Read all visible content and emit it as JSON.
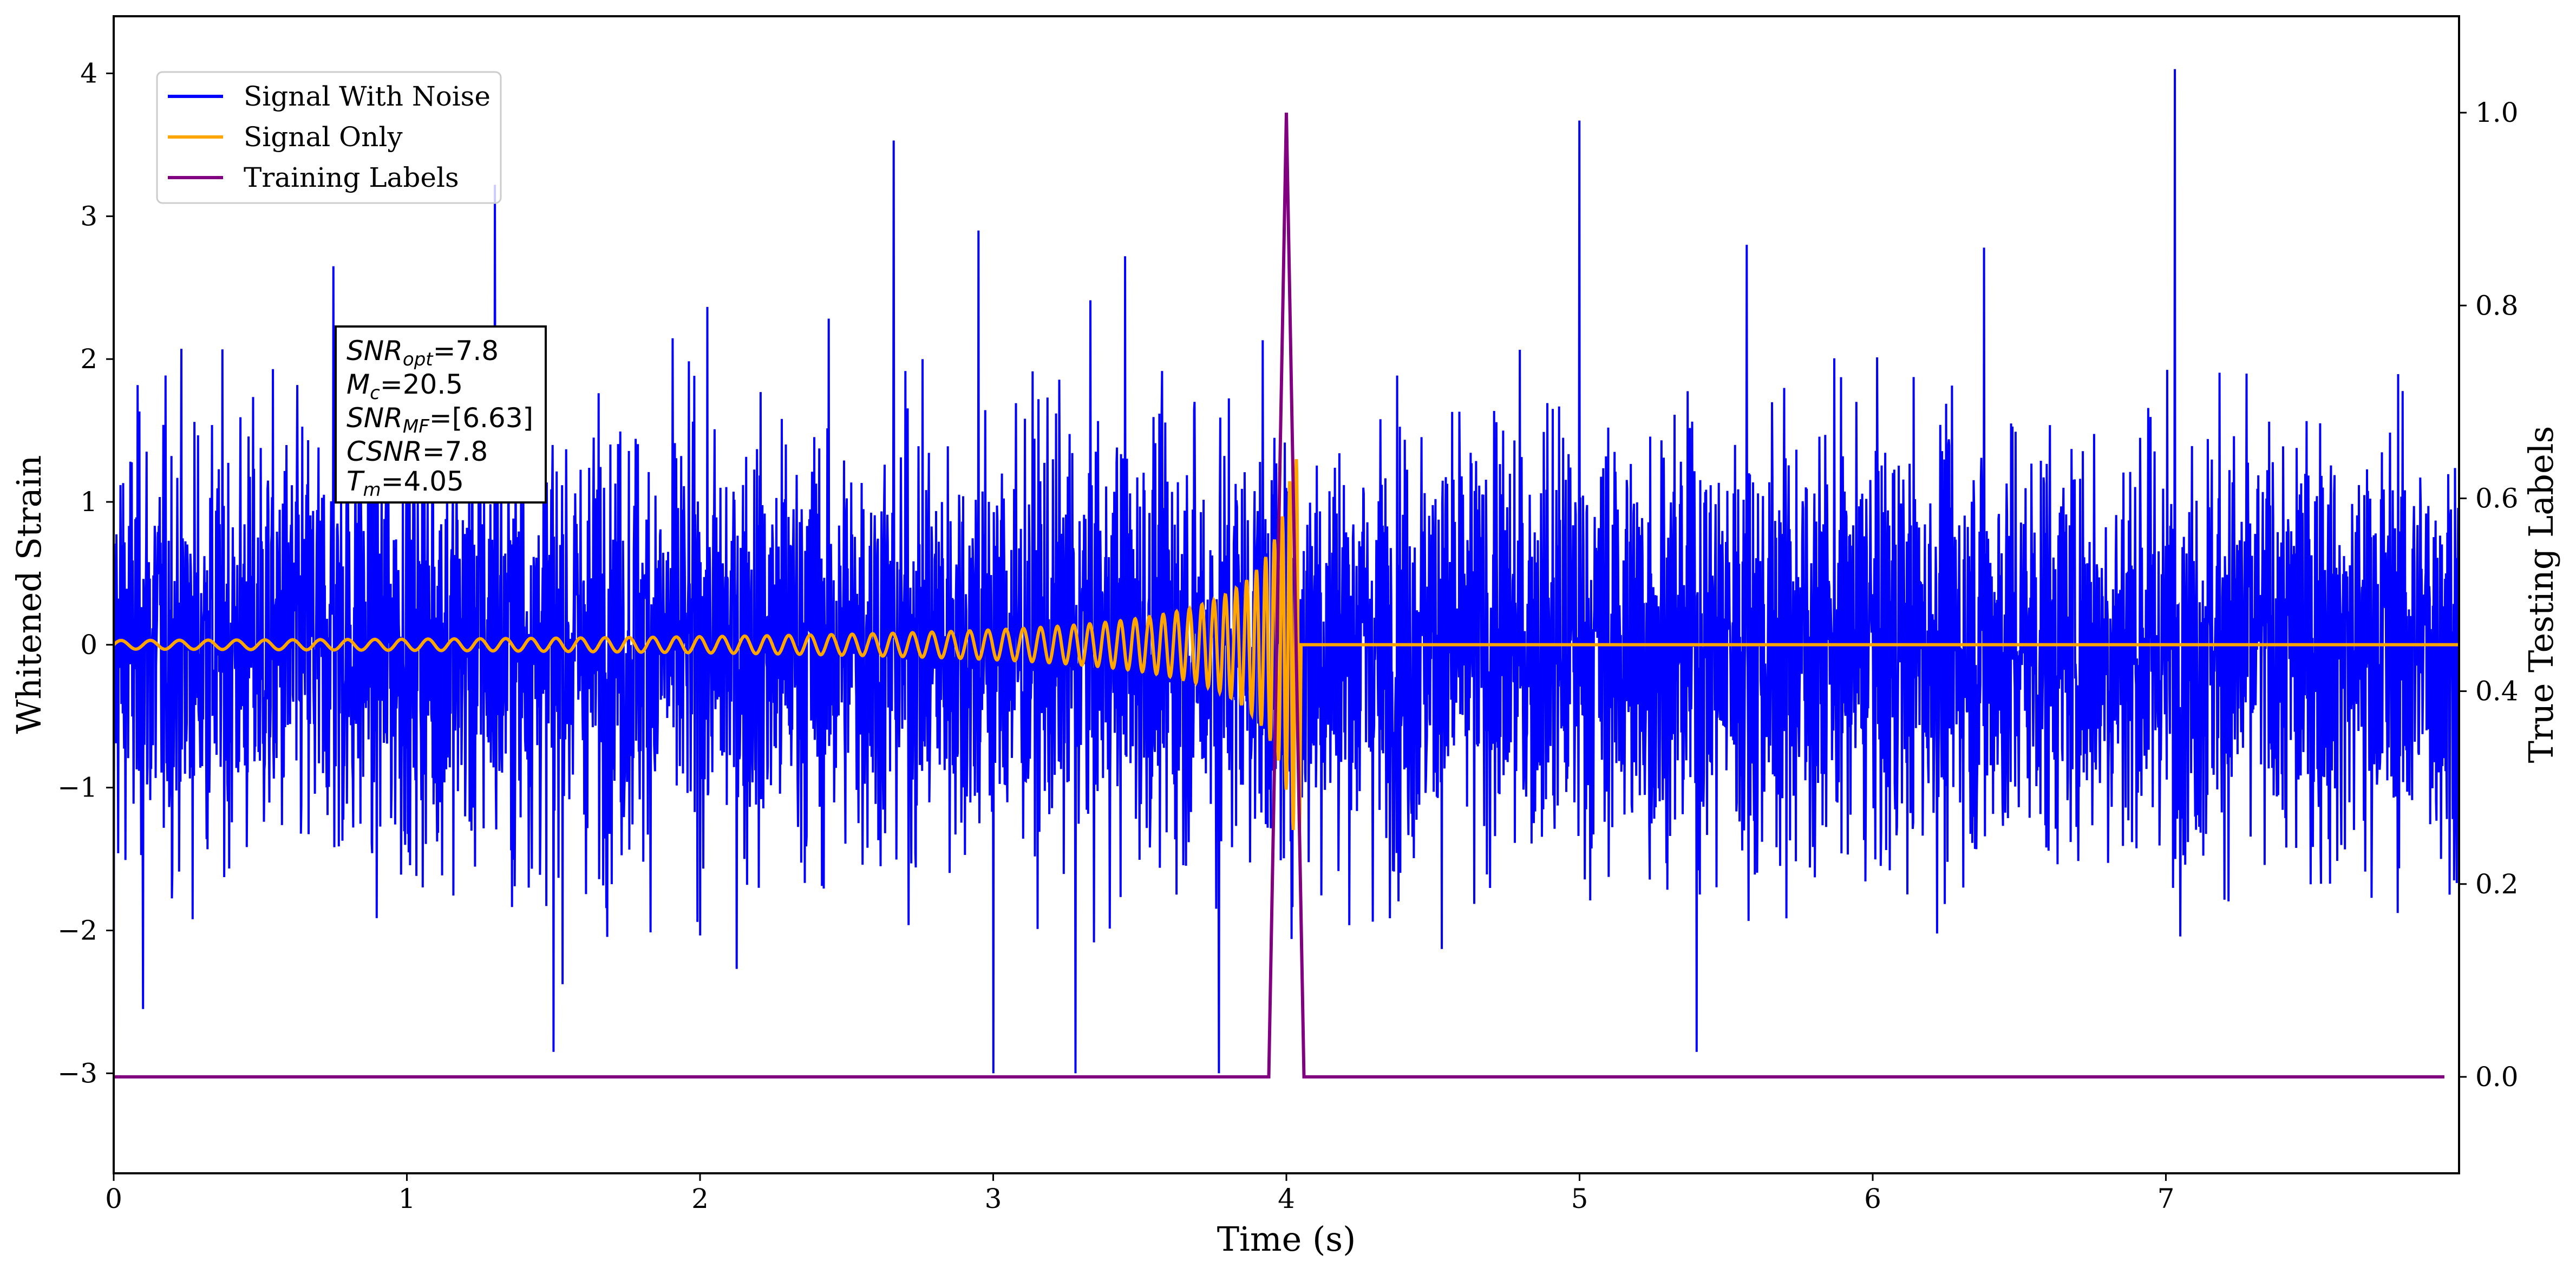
{
  "chart_data": {
    "type": "line",
    "xlabel": "Time (s)",
    "ylabel": "Whitened Strain",
    "y2label": "True Testing Labels",
    "xlim": [
      0,
      8.0
    ],
    "ylim": [
      -3.7,
      4.4
    ],
    "y2lim": [
      -0.1,
      1.1
    ],
    "xticks": [
      0,
      1,
      2,
      3,
      4,
      5,
      6,
      7
    ],
    "yticks": [
      -3,
      -2,
      -1,
      0,
      1,
      2,
      3,
      4
    ],
    "y2ticks": [
      0.0,
      0.2,
      0.4,
      0.6,
      0.8,
      1.0
    ],
    "grid": false,
    "legend_position": "top-left",
    "series": [
      {
        "name": "Signal With Noise",
        "color": "#0000ff",
        "axis": "left",
        "description_values": {
          "x_start": 0,
          "x_end": 8.0,
          "std": 0.75,
          "min": -3.35,
          "max": 4.03
        },
        "peaks": [
          {
            "x": 1.3,
            "y": 3.22
          },
          {
            "x": 2.66,
            "y": 3.53
          },
          {
            "x": 5.0,
            "y": 3.67
          },
          {
            "x": 7.03,
            "y": 4.03
          },
          {
            "x": 0.75,
            "y": 2.65
          },
          {
            "x": 2.95,
            "y": 2.9
          },
          {
            "x": 3.45,
            "y": 2.72
          },
          {
            "x": 5.57,
            "y": 2.8
          },
          {
            "x": 6.38,
            "y": 2.78
          },
          {
            "x": 1.5,
            "y": -2.85
          },
          {
            "x": 3.0,
            "y": -3.0
          },
          {
            "x": 3.28,
            "y": -3.0
          },
          {
            "x": 3.77,
            "y": -3.0
          },
          {
            "x": 5.4,
            "y": -2.85
          },
          {
            "x": 0.1,
            "y": -2.55
          }
        ]
      },
      {
        "name": "Signal Only",
        "color": "#ffa500",
        "axis": "left",
        "description_values": {
          "waveform": "chirp",
          "amplitude_start": 0.03,
          "amplitude_peak": 1.3,
          "merger_time": 4.05,
          "value_after_merger": 0
        }
      },
      {
        "name": "Training Labels",
        "color": "#800080",
        "axis": "right",
        "x": [
          0.0,
          3.94,
          4.0,
          4.06,
          7.95
        ],
        "y": [
          0.0,
          0.0,
          1.0,
          0.0,
          0.0
        ]
      }
    ],
    "annotations": [
      {
        "main": "SNR",
        "sub": "opt",
        "value": "=7.8"
      },
      {
        "main": "M",
        "sub": "c",
        "value": "=20.5"
      },
      {
        "main": "SNR",
        "sub": "MF",
        "value": "=[6.63]"
      },
      {
        "main": "CSNR",
        "sub": "",
        "value": "=7.8"
      },
      {
        "main": "T",
        "sub": "m",
        "value": "=4.05"
      }
    ]
  }
}
